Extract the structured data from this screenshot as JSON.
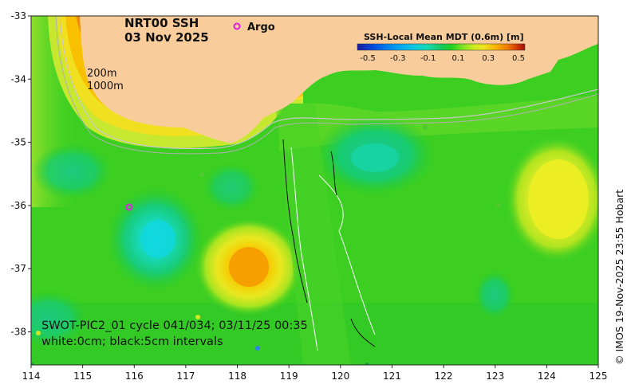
{
  "map": {
    "title_line1": "NRT00 SSH",
    "title_line2": "03 Nov 2025",
    "argo_label": "Argo",
    "depth_label_200": "200m",
    "depth_label_1000": "1000m",
    "colorbar": {
      "title": "SSH-Local Mean MDT (0.6m) [m]",
      "ticks": [
        "-0.5",
        "-0.3",
        "-0.1",
        "0.1",
        "0.3",
        "0.5"
      ],
      "colors": [
        "#1a1aa0",
        "#0050e0",
        "#0098f0",
        "#10c8e0",
        "#18d8b0",
        "#18c860",
        "#20d020",
        "#70e020",
        "#c0ec20",
        "#f0e020",
        "#f8b000",
        "#f08000",
        "#d83000",
        "#a01010"
      ]
    },
    "x_ticks": [
      "114",
      "115",
      "116",
      "117",
      "118",
      "119",
      "120",
      "121",
      "122",
      "123",
      "124",
      "125"
    ],
    "y_ticks": [
      "-33",
      "-34",
      "-35",
      "-36",
      "-37",
      "-38"
    ],
    "caption_line1": "SWOT-PIC2_01 cycle 041/034; 03/11/25 00:35",
    "caption_line2": "white:0cm; black:5cm intervals",
    "side_text": "© IMOS 19-Nov-2025 23:55 Hobart",
    "colors": {
      "land": "#f9cd9b",
      "ocean_green": "#22cc22",
      "argo_marker": "#e020e0"
    }
  }
}
